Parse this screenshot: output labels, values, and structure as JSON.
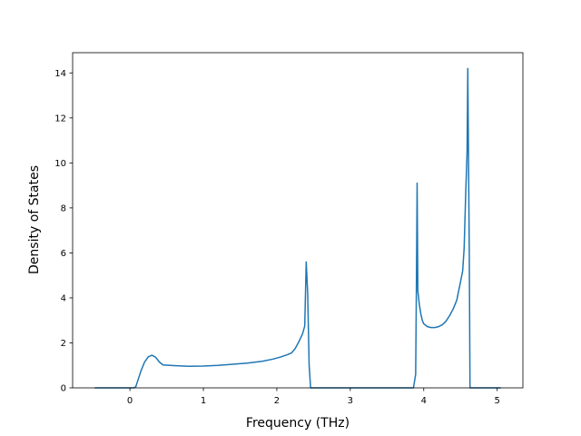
{
  "chart_data": {
    "type": "line",
    "title": "",
    "xlabel": "Frequency (THz)",
    "ylabel": "Density of States",
    "xlim": [
      -0.78,
      5.35
    ],
    "ylim": [
      0,
      14.9
    ],
    "xticks": [
      0,
      1,
      2,
      3,
      4,
      5
    ],
    "yticks": [
      0,
      2,
      4,
      6,
      8,
      10,
      12,
      14
    ],
    "grid": false,
    "series": [
      {
        "color": "#1f77b4",
        "x": [
          -0.48,
          -0.3,
          -0.1,
          0.05,
          0.08,
          0.1,
          0.15,
          0.2,
          0.25,
          0.3,
          0.35,
          0.4,
          0.45,
          0.6,
          0.8,
          1.0,
          1.2,
          1.4,
          1.6,
          1.8,
          1.95,
          2.05,
          2.15,
          2.2,
          2.25,
          2.3,
          2.35,
          2.38,
          2.4,
          2.42,
          2.44,
          2.46,
          2.5,
          3.0,
          3.5,
          3.86,
          3.89,
          3.9,
          3.91,
          3.92,
          3.94,
          3.96,
          3.98,
          4.0,
          4.05,
          4.1,
          4.15,
          4.2,
          4.25,
          4.3,
          4.35,
          4.4,
          4.45,
          4.5,
          4.53,
          4.55,
          4.57,
          4.59,
          4.6,
          4.62,
          4.63,
          4.7,
          5.0,
          5.05
        ],
        "y": [
          0,
          0,
          0,
          0,
          0.05,
          0.25,
          0.75,
          1.15,
          1.38,
          1.45,
          1.36,
          1.15,
          1.02,
          0.99,
          0.96,
          0.97,
          1.0,
          1.05,
          1.1,
          1.18,
          1.28,
          1.37,
          1.48,
          1.55,
          1.75,
          2.05,
          2.4,
          2.75,
          5.6,
          4.2,
          1.0,
          0,
          0,
          0,
          0,
          0,
          0.6,
          4.5,
          9.1,
          4.3,
          3.7,
          3.3,
          3.0,
          2.85,
          2.72,
          2.68,
          2.68,
          2.72,
          2.8,
          2.95,
          3.2,
          3.5,
          3.9,
          4.7,
          5.2,
          6.2,
          8.5,
          10.5,
          14.2,
          6.0,
          0,
          0,
          0,
          0
        ]
      }
    ]
  }
}
